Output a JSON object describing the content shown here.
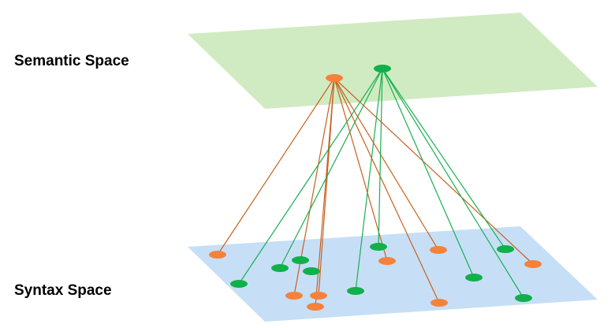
{
  "labels": {
    "semantic": "Semantic Space",
    "syntax": "Syntax Space"
  },
  "colors": {
    "semantic_plane": "#d0ebc2",
    "syntax_plane": "#c6dff6",
    "orange": "#f5823a",
    "green": "#10b04a",
    "orange_line": "#c8601e",
    "green_line": "#18b050"
  }
}
